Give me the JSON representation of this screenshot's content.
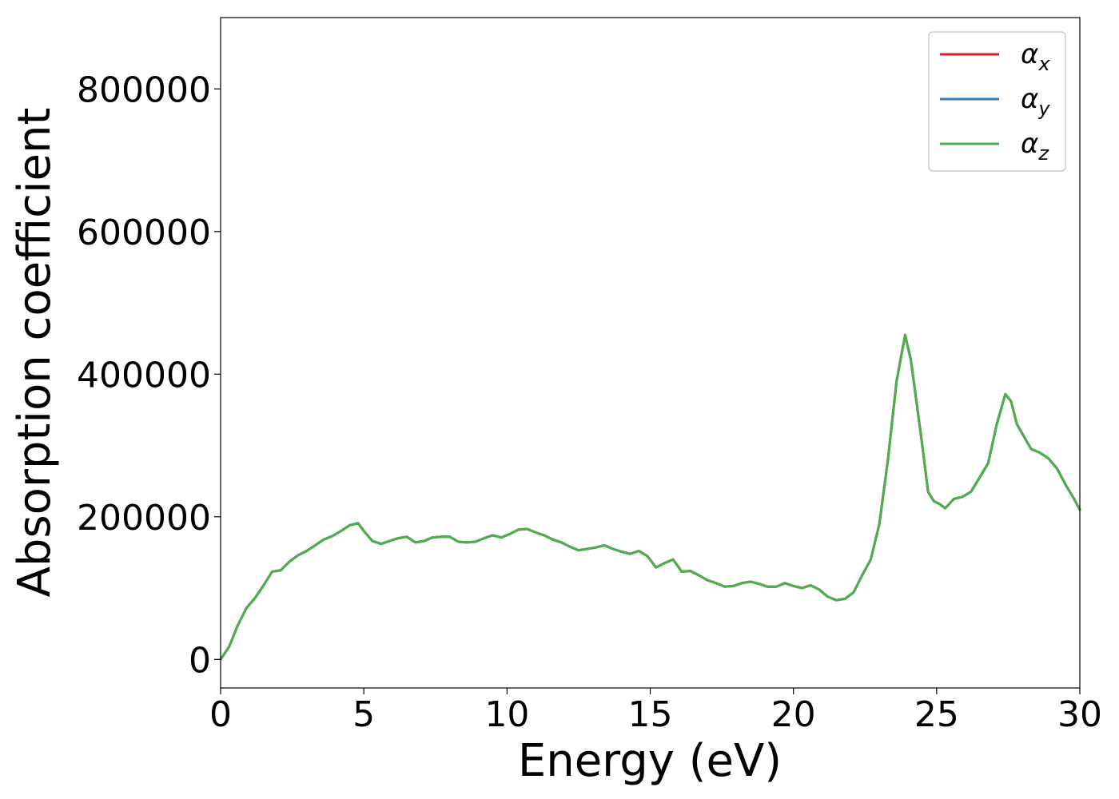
{
  "chart_data": {
    "type": "line",
    "title": "",
    "xlabel": "Energy (eV)",
    "ylabel": "Absorption coefficient",
    "xlim": [
      0,
      30
    ],
    "ylim": [
      -40000,
      900000
    ],
    "xticks": [
      0,
      5,
      10,
      15,
      20,
      25,
      30
    ],
    "xtick_labels": [
      "0",
      "5",
      "10",
      "15",
      "20",
      "25",
      "30"
    ],
    "yticks": [
      0,
      200000,
      400000,
      600000,
      800000
    ],
    "ytick_labels": [
      "0",
      "200000",
      "400000",
      "600000",
      "800000"
    ],
    "grid": false,
    "legend_position": "top-right",
    "x": [
      0,
      0.3,
      0.6,
      0.9,
      1.2,
      1.5,
      1.8,
      2.1,
      2.4,
      2.7,
      3.0,
      3.3,
      3.6,
      3.9,
      4.2,
      4.5,
      4.8,
      5.0,
      5.3,
      5.6,
      5.9,
      6.2,
      6.5,
      6.8,
      7.1,
      7.4,
      7.7,
      8.0,
      8.3,
      8.6,
      8.9,
      9.2,
      9.5,
      9.8,
      10.1,
      10.4,
      10.7,
      11.0,
      11.3,
      11.6,
      11.9,
      12.2,
      12.5,
      12.8,
      13.1,
      13.4,
      13.7,
      14.0,
      14.3,
      14.6,
      14.9,
      15.2,
      15.5,
      15.8,
      16.1,
      16.4,
      16.7,
      17.0,
      17.3,
      17.6,
      17.9,
      18.2,
      18.5,
      18.8,
      19.1,
      19.4,
      19.7,
      20.0,
      20.3,
      20.6,
      20.9,
      21.2,
      21.5,
      21.8,
      22.1,
      22.4,
      22.7,
      23.0,
      23.3,
      23.6,
      23.9,
      24.1,
      24.3,
      24.5,
      24.7,
      24.9,
      25.1,
      25.3,
      25.6,
      25.9,
      26.2,
      26.5,
      26.8,
      27.1,
      27.4,
      27.6,
      27.8,
      28.0,
      28.3,
      28.6,
      28.9,
      29.2,
      29.5,
      29.8,
      30.0
    ],
    "series": [
      {
        "name": "αx",
        "color": "#e41a1c",
        "values": [
          0,
          18000,
          48000,
          72000,
          86000,
          104000,
          123000,
          125000,
          137000,
          146000,
          152000,
          160000,
          168000,
          173000,
          180000,
          188000,
          191000,
          180000,
          166000,
          162000,
          166000,
          170000,
          172000,
          164000,
          166000,
          171000,
          172000,
          172000,
          165000,
          164000,
          165000,
          170000,
          174000,
          171000,
          176000,
          182000,
          183000,
          178000,
          174000,
          168000,
          164000,
          158000,
          153000,
          155000,
          157000,
          160000,
          155000,
          151000,
          148000,
          152000,
          145000,
          129000,
          135000,
          140000,
          123000,
          124000,
          118000,
          111000,
          107000,
          102000,
          103000,
          107000,
          109000,
          106000,
          102000,
          102000,
          107000,
          103000,
          100000,
          104000,
          98000,
          88000,
          83000,
          85000,
          94000,
          118000,
          140000,
          190000,
          280000,
          390000,
          455000,
          420000,
          360000,
          300000,
          235000,
          222000,
          218000,
          212000,
          225000,
          228000,
          235000,
          255000,
          275000,
          330000,
          372000,
          362000,
          330000,
          316000,
          295000,
          290000,
          282000,
          268000,
          245000,
          225000,
          210000
        ]
      },
      {
        "name": "αy",
        "color": "#377eb8",
        "values": [
          0,
          18000,
          48000,
          72000,
          86000,
          104000,
          123000,
          125000,
          137000,
          146000,
          152000,
          160000,
          168000,
          173000,
          180000,
          188000,
          191000,
          180000,
          166000,
          162000,
          166000,
          170000,
          172000,
          164000,
          166000,
          171000,
          172000,
          172000,
          165000,
          164000,
          165000,
          170000,
          174000,
          171000,
          176000,
          182000,
          183000,
          178000,
          174000,
          168000,
          164000,
          158000,
          153000,
          155000,
          157000,
          160000,
          155000,
          151000,
          148000,
          152000,
          145000,
          129000,
          135000,
          140000,
          123000,
          124000,
          118000,
          111000,
          107000,
          102000,
          103000,
          107000,
          109000,
          106000,
          102000,
          102000,
          107000,
          103000,
          100000,
          104000,
          98000,
          88000,
          83000,
          85000,
          94000,
          118000,
          140000,
          190000,
          280000,
          390000,
          455000,
          420000,
          360000,
          300000,
          235000,
          222000,
          218000,
          212000,
          225000,
          228000,
          235000,
          255000,
          275000,
          330000,
          372000,
          362000,
          330000,
          316000,
          295000,
          290000,
          282000,
          268000,
          245000,
          225000,
          210000
        ]
      },
      {
        "name": "αz",
        "color": "#4daf4a",
        "values": [
          0,
          18000,
          48000,
          72000,
          86000,
          104000,
          123000,
          125000,
          137000,
          146000,
          152000,
          160000,
          168000,
          173000,
          180000,
          188000,
          191000,
          180000,
          166000,
          162000,
          166000,
          170000,
          172000,
          164000,
          166000,
          171000,
          172000,
          172000,
          165000,
          164000,
          165000,
          170000,
          174000,
          171000,
          176000,
          182000,
          183000,
          178000,
          174000,
          168000,
          164000,
          158000,
          153000,
          155000,
          157000,
          160000,
          155000,
          151000,
          148000,
          152000,
          145000,
          129000,
          135000,
          140000,
          123000,
          124000,
          118000,
          111000,
          107000,
          102000,
          103000,
          107000,
          109000,
          106000,
          102000,
          102000,
          107000,
          103000,
          100000,
          104000,
          98000,
          88000,
          83000,
          85000,
          94000,
          118000,
          140000,
          190000,
          280000,
          390000,
          455000,
          420000,
          360000,
          300000,
          235000,
          222000,
          218000,
          212000,
          225000,
          228000,
          235000,
          255000,
          275000,
          330000,
          372000,
          362000,
          330000,
          316000,
          295000,
          290000,
          282000,
          268000,
          245000,
          225000,
          210000
        ]
      }
    ],
    "legend": [
      {
        "symbol": "α",
        "sub": "x",
        "color": "#e41a1c"
      },
      {
        "symbol": "α",
        "sub": "y",
        "color": "#377eb8"
      },
      {
        "symbol": "α",
        "sub": "z",
        "color": "#4daf4a"
      }
    ]
  }
}
